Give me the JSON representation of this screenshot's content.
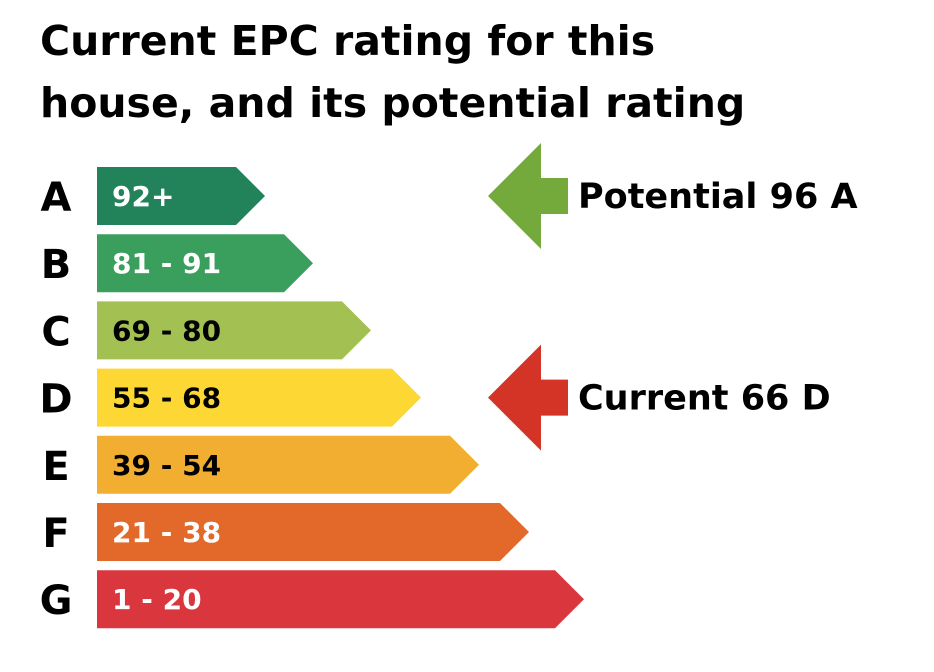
{
  "title_line1": "Current EPC rating for this",
  "title_line2": "house, and its potential rating",
  "chart_data": {
    "type": "bar",
    "categories": [
      "A",
      "B",
      "C",
      "D",
      "E",
      "F",
      "G"
    ],
    "bands": [
      {
        "letter": "A",
        "range": "92+",
        "min": 92,
        "max": 100,
        "color": "#22825a",
        "text_color": "#ffffff"
      },
      {
        "letter": "B",
        "range": "81 - 91",
        "min": 81,
        "max": 91,
        "color": "#3a9e5c",
        "text_color": "#ffffff"
      },
      {
        "letter": "C",
        "range": "69 - 80",
        "min": 69,
        "max": 80,
        "color": "#a3c053",
        "text_color": "#000000"
      },
      {
        "letter": "D",
        "range": "55 - 68",
        "min": 55,
        "max": 68,
        "color": "#fdd835",
        "text_color": "#000000"
      },
      {
        "letter": "E",
        "range": "39 - 54",
        "min": 39,
        "max": 54,
        "color": "#f2ae30",
        "text_color": "#000000"
      },
      {
        "letter": "F",
        "range": "21 - 38",
        "min": 21,
        "max": 38,
        "color": "#e3692a",
        "text_color": "#ffffff"
      },
      {
        "letter": "G",
        "range": "1 - 20",
        "min": 1,
        "max": 20,
        "color": "#d9363e",
        "text_color": "#ffffff"
      }
    ],
    "markers": [
      {
        "label": "Potential 96 A",
        "score": 96,
        "band": "A",
        "color": "#74aa3c"
      },
      {
        "label": "Current 66 D",
        "score": 66,
        "band": "D",
        "color": "#d43426"
      }
    ]
  }
}
